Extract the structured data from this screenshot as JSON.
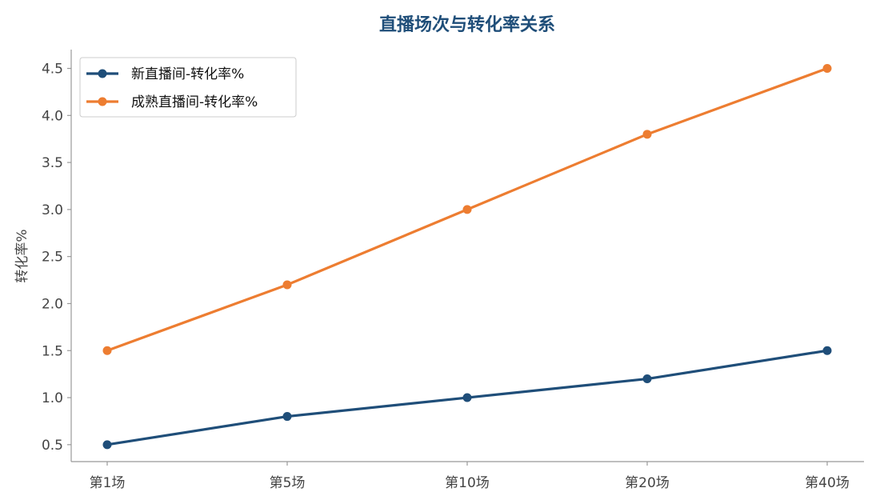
{
  "colors": {
    "title": "#1f4e79",
    "new_series": "#1f4e79",
    "mature_series": "#ed7d31",
    "axis": "#999999",
    "text": "#444444"
  },
  "chart_data": {
    "type": "line",
    "title": "直播场次与转化率关系",
    "xlabel": "",
    "ylabel": "转化率%",
    "categories": [
      "第1场",
      "第5场",
      "第10场",
      "第20场",
      "第40场"
    ],
    "series": [
      {
        "name": "新直播间-转化率%",
        "color": "#1f4e79",
        "values": [
          0.5,
          0.8,
          1.0,
          1.2,
          1.5
        ]
      },
      {
        "name": "成熟直播间-转化率%",
        "color": "#ed7d31",
        "values": [
          1.5,
          2.2,
          3.0,
          3.8,
          4.5
        ]
      }
    ],
    "ylim": [
      0.32,
      4.7
    ],
    "yticks": [
      "0.5",
      "1.0",
      "1.5",
      "2.0",
      "2.5",
      "3.0",
      "3.5",
      "4.0",
      "4.5"
    ],
    "grid": false,
    "legend_position": "top-left"
  }
}
